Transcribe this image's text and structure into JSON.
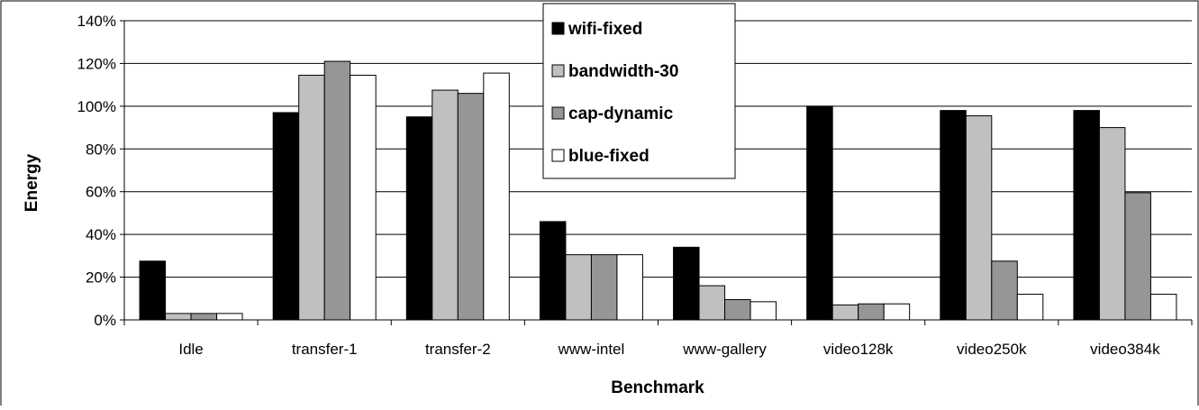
{
  "chart_data": {
    "type": "bar",
    "title": "",
    "xlabel": "Benchmark",
    "ylabel": "Energy",
    "ylim": [
      0,
      140
    ],
    "yticks": [
      "0%",
      "20%",
      "40%",
      "60%",
      "80%",
      "100%",
      "120%",
      "140%"
    ],
    "grid": true,
    "legend_position": "top-center",
    "categories": [
      "Idle",
      "transfer-1",
      "transfer-2",
      "www-intel",
      "www-gallery",
      "video128k",
      "video250k",
      "video384k"
    ],
    "series": [
      {
        "name": "wifi-fixed",
        "color": "#000000",
        "values": [
          27.5,
          97,
          95,
          46,
          34,
          100,
          98,
          98
        ]
      },
      {
        "name": "bandwidth-30",
        "color": "#c0c0c0",
        "values": [
          3,
          114.5,
          107.5,
          30.5,
          16,
          7,
          95.5,
          90
        ]
      },
      {
        "name": "cap-dynamic",
        "color": "#969696",
        "values": [
          3,
          121,
          106,
          30.5,
          9.5,
          7.5,
          27.5,
          59.5
        ]
      },
      {
        "name": "blue-fixed",
        "color": "#ffffff",
        "values": [
          3,
          114.5,
          115.5,
          30.5,
          8.5,
          7.5,
          12,
          12
        ]
      }
    ]
  }
}
